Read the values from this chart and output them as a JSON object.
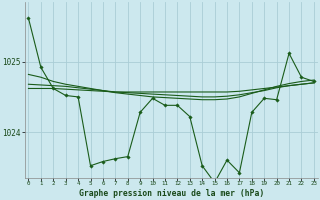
{
  "background_color": "#cce8ee",
  "grid_color": "#aacdd6",
  "line_color": "#1a5c1a",
  "x_ticks": [
    0,
    1,
    2,
    3,
    4,
    5,
    6,
    7,
    8,
    9,
    10,
    11,
    12,
    13,
    14,
    15,
    16,
    17,
    18,
    19,
    20,
    21,
    22,
    23
  ],
  "y_ticks": [
    1024,
    1025
  ],
  "ylim": [
    1023.35,
    1025.85
  ],
  "xlim": [
    -0.3,
    23.3
  ],
  "xlabel": "Graphe pression niveau de la mer (hPa)",
  "main_line": [
    1025.62,
    1024.92,
    1024.62,
    1024.52,
    1024.5,
    1023.52,
    1023.58,
    1023.62,
    1023.65,
    1024.28,
    1024.48,
    1024.38,
    1024.38,
    1024.22,
    1023.52,
    1023.28,
    1023.6,
    1023.42,
    1024.28,
    1024.48,
    1024.46,
    1025.12,
    1024.78,
    1024.72
  ],
  "smooth_line1": [
    1024.82,
    1024.78,
    1024.72,
    1024.68,
    1024.65,
    1024.62,
    1024.59,
    1024.56,
    1024.54,
    1024.52,
    1024.5,
    1024.49,
    1024.48,
    1024.47,
    1024.46,
    1024.46,
    1024.47,
    1024.5,
    1024.55,
    1024.6,
    1024.65,
    1024.69,
    1024.72,
    1024.74
  ],
  "smooth_line2": [
    1024.68,
    1024.67,
    1024.66,
    1024.65,
    1024.63,
    1024.61,
    1024.59,
    1024.57,
    1024.56,
    1024.55,
    1024.54,
    1024.53,
    1024.52,
    1024.51,
    1024.5,
    1024.5,
    1024.51,
    1024.53,
    1024.56,
    1024.59,
    1024.63,
    1024.66,
    1024.68,
    1024.7
  ],
  "smooth_line3": [
    1024.62,
    1024.62,
    1024.62,
    1024.61,
    1024.6,
    1024.59,
    1024.58,
    1024.57,
    1024.57,
    1024.57,
    1024.57,
    1024.57,
    1024.57,
    1024.57,
    1024.57,
    1024.57,
    1024.57,
    1024.58,
    1024.6,
    1024.62,
    1024.64,
    1024.66,
    1024.68,
    1024.7
  ]
}
